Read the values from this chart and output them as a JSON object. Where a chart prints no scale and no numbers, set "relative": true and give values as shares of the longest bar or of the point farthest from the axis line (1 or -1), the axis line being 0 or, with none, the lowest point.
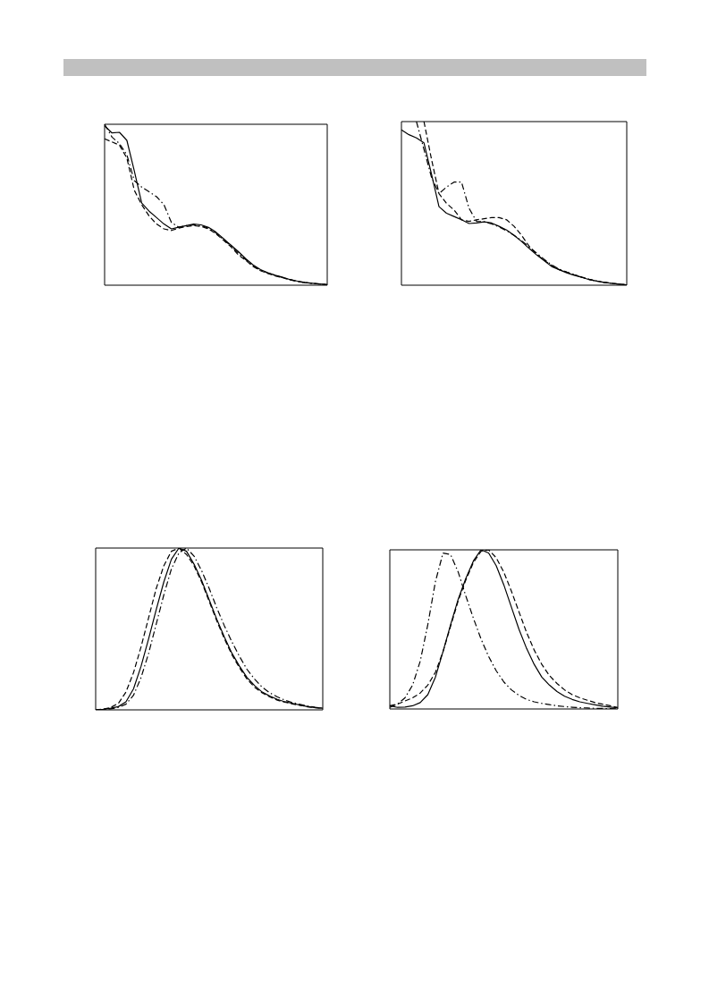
{
  "chart_data": [
    {
      "type": "line",
      "relative": true,
      "categories": [
        null,
        null,
        null,
        null,
        null,
        null,
        null,
        null,
        null,
        null,
        null,
        null,
        null,
        null,
        null,
        null,
        null,
        null,
        null,
        null,
        null,
        null,
        null,
        null,
        null,
        null,
        null,
        null,
        null,
        null,
        null
      ],
      "series": [
        {
          "color": "#000000",
          "line_style": "solid",
          "values": [
            0.99,
            0.946,
            0.95,
            0.9,
            0.71,
            0.51,
            0.46,
            0.42,
            0.38,
            0.35,
            0.36,
            0.37,
            0.38,
            0.375,
            0.36,
            0.33,
            0.29,
            0.25,
            0.21,
            0.165,
            0.126,
            0.097,
            0.078,
            0.062,
            0.049,
            0.035,
            0.025,
            0.017,
            0.012,
            0.008,
            0.004
          ]
        },
        {
          "color": "#000000",
          "line_style": "dashed",
          "values": [
            0.91,
            0.89,
            0.87,
            0.79,
            0.59,
            0.5,
            0.43,
            0.38,
            0.35,
            0.34,
            0.355,
            0.365,
            0.37,
            0.365,
            0.35,
            0.32,
            0.28,
            0.24,
            0.19,
            0.155,
            0.117,
            0.09,
            0.073,
            0.058,
            0.046,
            0.033,
            0.024,
            0.016,
            0.011,
            0.007,
            0.004
          ]
        },
        {
          "color": "#000000",
          "line_style": "dashdot",
          "values": [
            1,
            0.92,
            0.88,
            0.81,
            0.65,
            0.61,
            0.58,
            0.55,
            0.5,
            0.39,
            0.36,
            0.37,
            0.375,
            0.37,
            0.355,
            0.325,
            0.285,
            0.245,
            0.2,
            0.16,
            0.12,
            0.093,
            0.075,
            0.06,
            0.047,
            0.034,
            0.024,
            0.016,
            0.011,
            0.007,
            0.004
          ]
        }
      ]
    },
    {
      "type": "line",
      "relative": true,
      "categories": [
        null,
        null,
        null,
        null,
        null,
        null,
        null,
        null,
        null,
        null,
        null,
        null,
        null,
        null,
        null,
        null,
        null,
        null,
        null,
        null,
        null,
        null,
        null,
        null,
        null,
        null,
        null,
        null,
        null,
        null,
        null
      ],
      "series": [
        {
          "color": "#000000",
          "line_style": "solid",
          "values": [
            0.95,
            0.92,
            0.9,
            0.87,
            0.68,
            0.48,
            0.44,
            0.42,
            0.4,
            0.377,
            0.38,
            0.387,
            0.38,
            0.36,
            0.337,
            0.305,
            0.267,
            0.225,
            0.185,
            0.15,
            0.114,
            0.095,
            0.076,
            0.061,
            0.048,
            0.034,
            0.025,
            0.017,
            0.011,
            0.006,
            0.002
          ]
        },
        {
          "color": "#000000",
          "line_style": "dashed",
          "values": [
            null,
            null,
            null,
            1,
            0.77,
            0.56,
            0.5,
            0.46,
            0.4,
            0.39,
            0.4,
            0.406,
            0.413,
            0.413,
            0.4,
            0.36,
            0.305,
            0.238,
            0.19,
            0.152,
            0.12,
            0.095,
            0.08,
            0.064,
            0.05,
            0.036,
            0.026,
            0.018,
            0.012,
            0.007,
            0.003
          ]
        },
        {
          "color": "#000000",
          "line_style": "dashdot",
          "values": [
            null,
            null,
            1,
            0.83,
            0.66,
            0.56,
            0.6,
            0.63,
            0.63,
            0.47,
            0.39,
            0.387,
            0.375,
            0.356,
            0.333,
            0.305,
            0.272,
            0.234,
            0.196,
            0.158,
            0.124,
            0.099,
            0.08,
            0.063,
            0.049,
            0.035,
            0.025,
            0.017,
            0.011,
            0.006,
            0.002
          ]
        }
      ]
    },
    {
      "type": "line",
      "relative": true,
      "categories": [
        null,
        null,
        null,
        null,
        null,
        null,
        null,
        null,
        null,
        null,
        null,
        null,
        null,
        null,
        null,
        null,
        null,
        null,
        null,
        null,
        null,
        null,
        null,
        null,
        null,
        null,
        null,
        null,
        null,
        null,
        null
      ],
      "series": [
        {
          "color": "#000000",
          "line_style": "solid",
          "values": [
            0,
            0.003,
            0.01,
            0.02,
            0.05,
            0.13,
            0.27,
            0.44,
            0.62,
            0.79,
            0.93,
            1,
            0.98,
            0.9,
            0.8,
            0.68,
            0.56,
            0.45,
            0.35,
            0.27,
            0.2,
            0.15,
            0.11,
            0.085,
            0.065,
            0.05,
            0.04,
            0.03,
            0.02,
            0.014,
            0.01
          ]
        },
        {
          "color": "#000000",
          "line_style": "dashed",
          "values": [
            0,
            0.005,
            0.015,
            0.04,
            0.11,
            0.23,
            0.39,
            0.57,
            0.75,
            0.89,
            0.98,
            1,
            0.96,
            0.89,
            0.79,
            0.67,
            0.55,
            0.44,
            0.34,
            0.26,
            0.19,
            0.14,
            0.105,
            0.08,
            0.06,
            0.047,
            0.037,
            0.028,
            0.019,
            0.013,
            0.009
          ]
        },
        {
          "color": "#000000",
          "line_style": "dashdot",
          "values": [
            0,
            0.002,
            0.006,
            0.015,
            0.035,
            0.09,
            0.2,
            0.35,
            0.53,
            0.71,
            0.87,
            0.97,
            1,
            0.95,
            0.86,
            0.75,
            0.63,
            0.52,
            0.42,
            0.33,
            0.25,
            0.19,
            0.14,
            0.105,
            0.08,
            0.06,
            0.045,
            0.034,
            0.024,
            0.016,
            0.01
          ]
        }
      ]
    },
    {
      "type": "line",
      "relative": true,
      "categories": [
        null,
        null,
        null,
        null,
        null,
        null,
        null,
        null,
        null,
        null,
        null,
        null,
        null,
        null,
        null,
        null,
        null,
        null,
        null,
        null,
        null,
        null,
        null,
        null,
        null,
        null,
        null,
        null,
        null,
        null,
        null
      ],
      "series": [
        {
          "color": "#000000",
          "line_style": "solid",
          "values": [
            0.02,
            0.01,
            0.012,
            0.02,
            0.04,
            0.09,
            0.2,
            0.36,
            0.53,
            0.69,
            0.82,
            0.93,
            1,
            0.98,
            0.9,
            0.78,
            0.64,
            0.5,
            0.38,
            0.28,
            0.2,
            0.15,
            0.11,
            0.08,
            0.06,
            0.045,
            0.035,
            0.026,
            0.018,
            0.012,
            0.007
          ]
        },
        {
          "color": "#000000",
          "line_style": "dashed",
          "values": [
            0.02,
            0.03,
            0.05,
            0.07,
            0.1,
            0.15,
            0.23,
            0.36,
            0.52,
            0.68,
            0.81,
            0.92,
            0.99,
            1,
            0.95,
            0.86,
            0.74,
            0.61,
            0.48,
            0.37,
            0.28,
            0.21,
            0.16,
            0.12,
            0.09,
            0.07,
            0.055,
            0.04,
            0.03,
            0.02,
            0.01
          ]
        },
        {
          "color": "#000000",
          "line_style": "dashdot",
          "values": [
            0.01,
            0.03,
            0.07,
            0.15,
            0.3,
            0.53,
            0.8,
            0.98,
            0.97,
            0.86,
            0.71,
            0.57,
            0.44,
            0.33,
            0.24,
            0.17,
            0.12,
            0.085,
            0.06,
            0.045,
            0.035,
            0.027,
            0.02,
            0.015,
            0.011,
            0.008,
            0.006,
            0.004,
            0.003,
            0.002,
            0.001
          ]
        }
      ]
    }
  ]
}
